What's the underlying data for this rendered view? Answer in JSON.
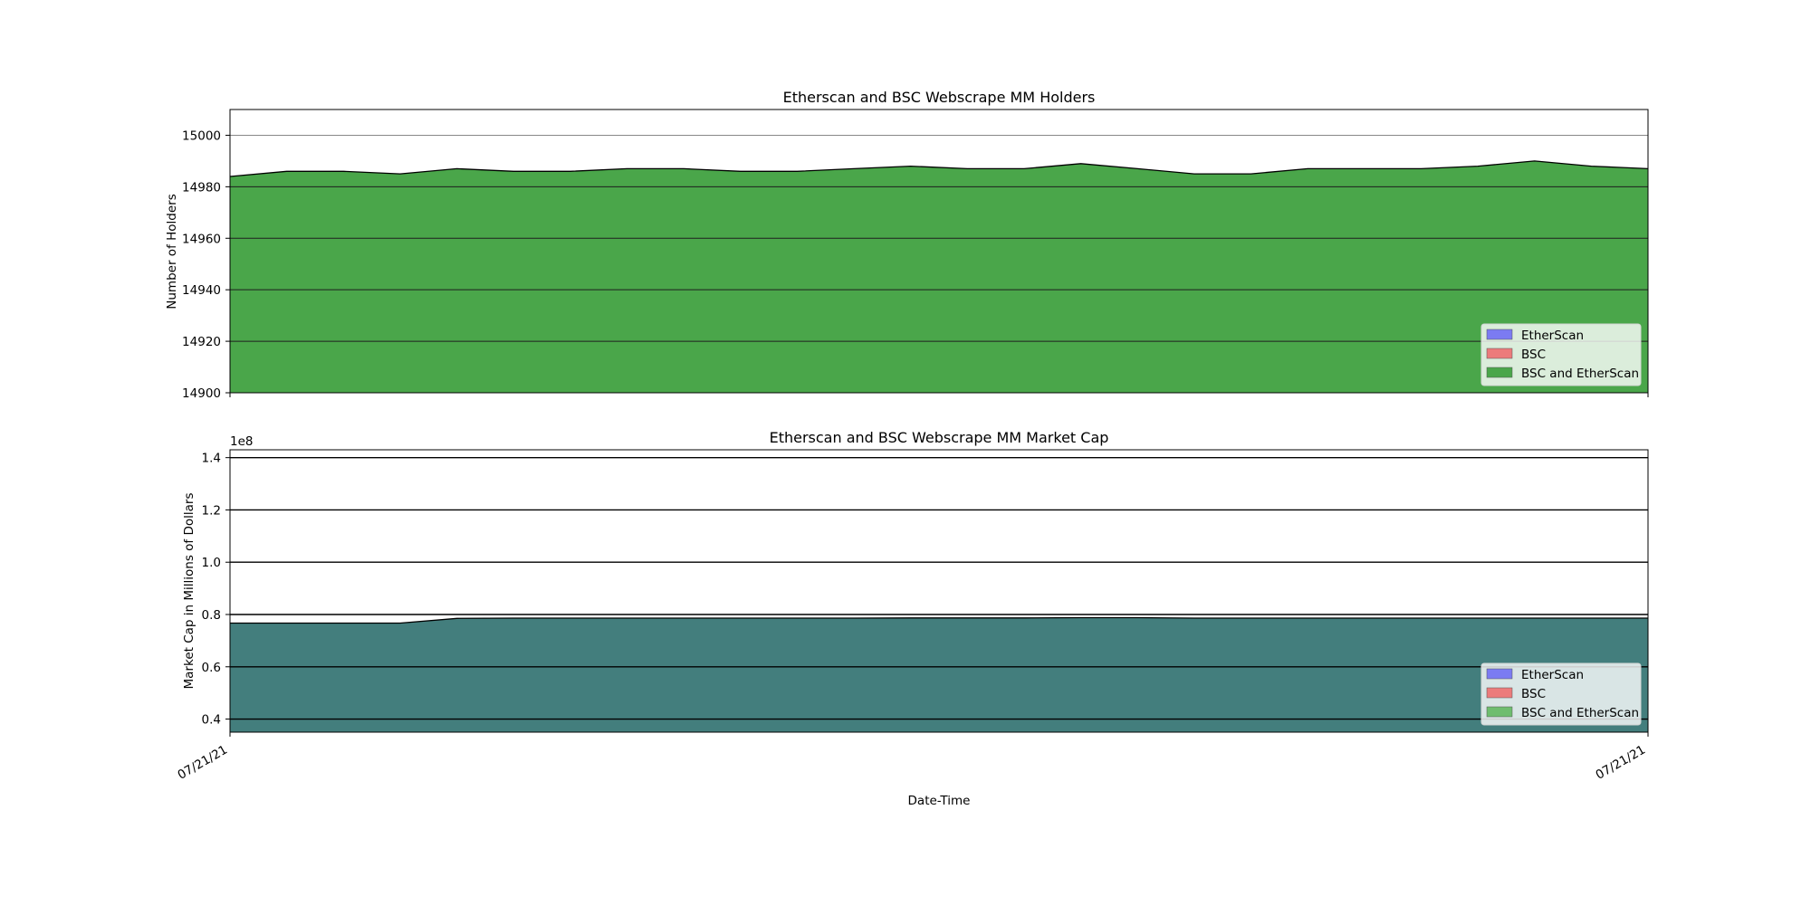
{
  "chart_data": [
    {
      "type": "area",
      "title": "Etherscan and BSC Webscrape MM Holders",
      "xlabel": "",
      "ylabel": "Number of Holders",
      "ylim": [
        14900,
        15010
      ],
      "yticks": [
        14900,
        14920,
        14940,
        14960,
        14980,
        15000
      ],
      "grid": true,
      "legend_position": "lower right",
      "legend": [
        "EtherScan",
        "BSC",
        "BSC and EtherScan"
      ],
      "colors": {
        "EtherScan": "#7b7bf2",
        "BSC": "#ec7b7b",
        "BSC and EtherScan": "#4aa64a",
        "grid_major": "#888888",
        "grid_minor": "#1e1e1e"
      },
      "series": [
        {
          "name": "BSC and EtherScan",
          "values": [
            14984,
            14986,
            14986,
            14985,
            14987,
            14986,
            14986,
            14987,
            14987,
            14986,
            14986,
            14987,
            14988,
            14987,
            14987,
            14989,
            14987,
            14985,
            14985,
            14987,
            14987,
            14987,
            14988,
            14990,
            14988,
            14987
          ]
        }
      ]
    },
    {
      "type": "area",
      "title": "Etherscan and BSC Webscrape MM Market Cap",
      "xlabel": "Date-Time",
      "ylabel": "Market Cap in Millions of Dollars",
      "offset_label": "1e8",
      "ylim": [
        0.35,
        1.43
      ],
      "yticks": [
        0.4,
        0.6,
        0.8,
        1.0,
        1.2,
        1.4
      ],
      "ytick_labels": [
        "0.4",
        "0.6",
        "0.8",
        "1.0",
        "1.2",
        "1.4"
      ],
      "grid": true,
      "legend_position": "lower right",
      "legend": [
        "EtherScan",
        "BSC",
        "BSC and EtherScan"
      ],
      "xtick_labels": [
        "07/21/21",
        "07/21/21"
      ],
      "colors": {
        "EtherScan": "#7b7bf2",
        "BSC": "#ec7b7b",
        "BSC and EtherScan": "#6fbd6f",
        "fill": "#437e7d",
        "grid": "#000000"
      },
      "series": [
        {
          "name": "BSC and EtherScan",
          "values": [
            0.767,
            0.767,
            0.767,
            0.767,
            0.785,
            0.786,
            0.786,
            0.786,
            0.786,
            0.786,
            0.786,
            0.786,
            0.787,
            0.787,
            0.787,
            0.788,
            0.788,
            0.786,
            0.786,
            0.786,
            0.786,
            0.786,
            0.786,
            0.786,
            0.786,
            0.786
          ]
        }
      ]
    }
  ]
}
